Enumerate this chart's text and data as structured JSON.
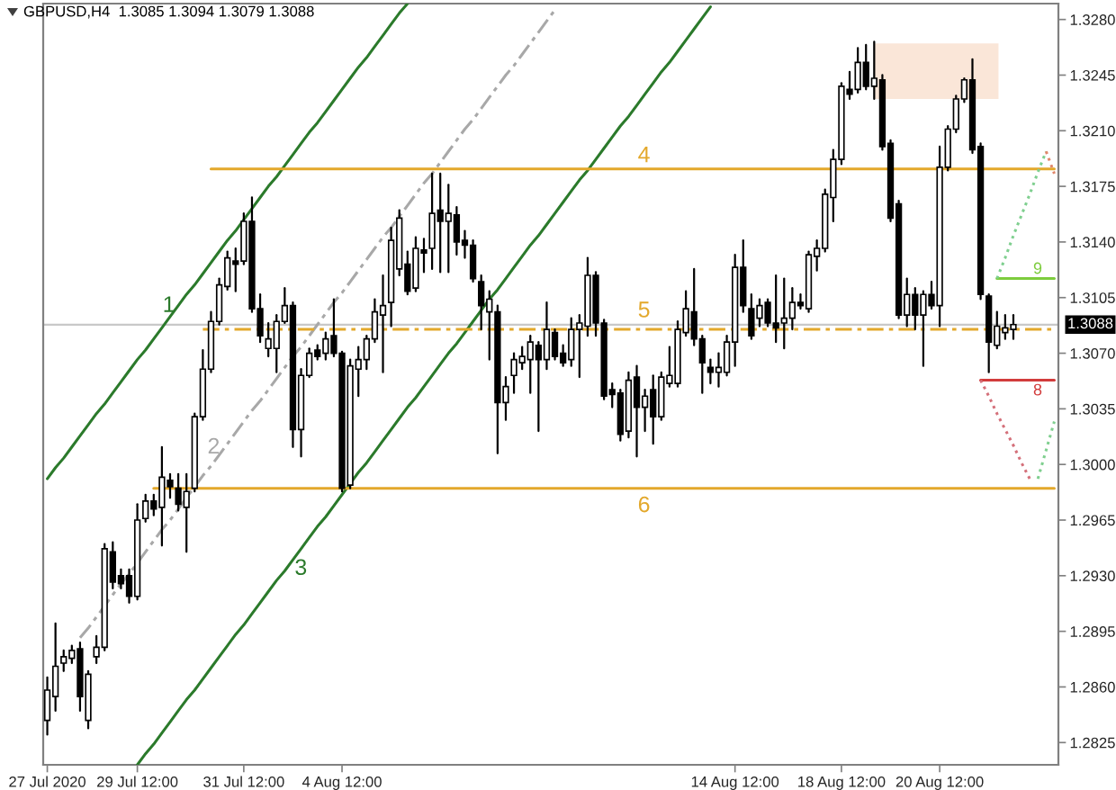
{
  "chart_data": {
    "type": "candlestick",
    "title": "GBPUSD,H4  1.3085 1.3094 1.3079 1.3088",
    "color": "#000000",
    "categories": [
      "27 Jul 2020",
      null,
      null,
      null,
      null,
      null,
      null,
      null,
      null,
      null,
      null,
      "29 Jul 12:00",
      null,
      null,
      null,
      null,
      null,
      null,
      null,
      null,
      null,
      null,
      null,
      null,
      "31 Jul 12:00",
      null,
      null,
      null,
      null,
      null,
      null,
      null,
      null,
      null,
      null,
      null,
      "4 Aug 12:00",
      null,
      null,
      null,
      null,
      null,
      null,
      null,
      null,
      null,
      null,
      null,
      null,
      null,
      null,
      null,
      null,
      null,
      null,
      null,
      null,
      null,
      null,
      null,
      null,
      null,
      null,
      null,
      null,
      null,
      null,
      null,
      null,
      null,
      null,
      null,
      null,
      null,
      null,
      null,
      null,
      null,
      null,
      null,
      null,
      null,
      null,
      null,
      "14 Aug 12:00",
      null,
      null,
      null,
      null,
      null,
      null,
      null,
      null,
      null,
      null,
      null,
      null,
      "18 Aug 12:00",
      null,
      null,
      null,
      null,
      null,
      null,
      null,
      null,
      null,
      null,
      null,
      "20 Aug 12:00",
      null,
      null,
      null,
      null,
      null,
      null,
      null,
      null,
      null,
      null,
      null,
      null,
      null,
      null
    ],
    "ohlc": [
      [
        1.2839,
        1.2866,
        1.283,
        1.2858
      ],
      [
        1.2854,
        1.29,
        1.2845,
        1.2873
      ],
      [
        1.2875,
        1.2883,
        1.287,
        1.2879
      ],
      [
        1.2878,
        1.2886,
        1.2875,
        1.2883
      ],
      [
        1.2884,
        1.2888,
        1.2845,
        1.2854
      ],
      [
        1.2839,
        1.287,
        1.2834,
        1.2868
      ],
      [
        1.2879,
        1.2892,
        1.2875,
        1.2885
      ],
      [
        1.2885,
        1.295,
        1.2883,
        1.2947
      ],
      [
        1.2945,
        1.2951,
        1.2922,
        1.2926
      ],
      [
        1.293,
        1.2934,
        1.2922,
        1.2925
      ],
      [
        1.293,
        1.2934,
        1.2913,
        1.2917
      ],
      [
        1.2917,
        1.2975,
        1.2915,
        1.2965
      ],
      [
        1.2966,
        1.2981,
        1.2964,
        1.2977
      ],
      [
        1.2977,
        1.2981,
        1.2968,
        1.2972
      ],
      [
        1.2973,
        1.3011,
        1.2949,
        1.2992
      ],
      [
        1.299,
        1.2994,
        1.2979,
        1.2986
      ],
      [
        1.2985,
        1.2994,
        1.2971,
        1.2975
      ],
      [
        1.2973,
        1.2994,
        1.2945,
        1.2983
      ],
      [
        1.2985,
        1.3032,
        1.2983,
        1.303
      ],
      [
        1.303,
        1.3072,
        1.3028,
        1.306
      ],
      [
        1.306,
        1.3096,
        1.3058,
        1.309
      ],
      [
        1.309,
        1.3117,
        1.3088,
        1.3113
      ],
      [
        1.3112,
        1.3134,
        1.311,
        1.313
      ],
      [
        1.3128,
        1.3136,
        1.3109,
        1.3126
      ],
      [
        1.3128,
        1.3158,
        1.3126,
        1.3153
      ],
      [
        1.3153,
        1.3168,
        1.3096,
        1.3098
      ],
      [
        1.3098,
        1.3107,
        1.3077,
        1.3081
      ],
      [
        1.3073,
        1.3089,
        1.3068,
        1.3079
      ],
      [
        1.3073,
        1.3094,
        1.3058,
        1.309
      ],
      [
        1.309,
        1.3111,
        1.3089,
        1.31
      ],
      [
        1.31,
        1.3102,
        1.3011,
        1.3022
      ],
      [
        1.3022,
        1.306,
        1.3005,
        1.3056
      ],
      [
        1.3056,
        1.3073,
        1.3055,
        1.307
      ],
      [
        1.3072,
        1.3075,
        1.3066,
        1.3068
      ],
      [
        1.307,
        1.3083,
        1.3066,
        1.3079
      ],
      [
        1.3081,
        1.3104,
        1.3068,
        1.307
      ],
      [
        1.307,
        1.3071,
        1.2983,
        1.2985
      ],
      [
        1.2987,
        1.3066,
        1.2985,
        1.3062
      ],
      [
        1.306,
        1.3074,
        1.3043,
        1.3066
      ],
      [
        1.3066,
        1.3081,
        1.306,
        1.3079
      ],
      [
        1.3079,
        1.3104,
        1.3077,
        1.3096
      ],
      [
        1.3094,
        1.3119,
        1.3058,
        1.31
      ],
      [
        1.3102,
        1.3149,
        1.3087,
        1.3141
      ],
      [
        1.3123,
        1.316,
        1.3119,
        1.3155
      ],
      [
        1.3126,
        1.3134,
        1.3107,
        1.3109
      ],
      [
        1.3111,
        1.3143,
        1.3109,
        1.3136
      ],
      [
        1.3135,
        1.3142,
        1.3121,
        1.3133
      ],
      [
        1.3136,
        1.3183,
        1.3123,
        1.3158
      ],
      [
        1.316,
        1.3183,
        1.3121,
        1.3153
      ],
      [
        1.3153,
        1.3176,
        1.3121,
        1.3158
      ],
      [
        1.3157,
        1.3162,
        1.3132,
        1.314
      ],
      [
        1.3141,
        1.3147,
        1.313,
        1.3138
      ],
      [
        1.3138,
        1.3141,
        1.3115,
        1.3117
      ],
      [
        1.3115,
        1.3119,
        1.3085,
        1.31
      ],
      [
        1.3096,
        1.3109,
        1.3066,
        1.3104
      ],
      [
        1.3096,
        1.31,
        1.3007,
        1.3039
      ],
      [
        1.3039,
        1.3055,
        1.3028,
        1.3049
      ],
      [
        1.3056,
        1.307,
        1.3045,
        1.3066
      ],
      [
        1.3064,
        1.3074,
        1.306,
        1.3068
      ],
      [
        1.3066,
        1.3081,
        1.3045,
        1.3077
      ],
      [
        1.3075,
        1.3077,
        1.3021,
        1.3066
      ],
      [
        1.3066,
        1.3102,
        1.306,
        1.3085
      ],
      [
        1.3083,
        1.3085,
        1.3066,
        1.3068
      ],
      [
        1.307,
        1.3075,
        1.3062,
        1.3064
      ],
      [
        1.3066,
        1.3092,
        1.3062,
        1.3085
      ],
      [
        1.3085,
        1.3094,
        1.3055,
        1.3089
      ],
      [
        1.3087,
        1.313,
        1.3081,
        1.3119
      ],
      [
        1.3119,
        1.3121,
        1.3081,
        1.3089
      ],
      [
        1.3089,
        1.3091,
        1.3041,
        1.3043
      ],
      [
        1.3047,
        1.3051,
        1.3036,
        1.3044
      ],
      [
        1.3045,
        1.3047,
        1.3015,
        1.3019
      ],
      [
        1.3021,
        1.3058,
        1.3017,
        1.3053
      ],
      [
        1.3055,
        1.3062,
        1.3005,
        1.3036
      ],
      [
        1.3036,
        1.3047,
        1.3021,
        1.3043
      ],
      [
        1.3047,
        1.3056,
        1.3013,
        1.303
      ],
      [
        1.303,
        1.3058,
        1.3028,
        1.3055
      ],
      [
        1.3051,
        1.3074,
        1.3049,
        1.3056
      ],
      [
        1.3051,
        1.309,
        1.3049,
        1.3085
      ],
      [
        1.3083,
        1.3109,
        1.3081,
        1.3098
      ],
      [
        1.3096,
        1.3123,
        1.3075,
        1.3079
      ],
      [
        1.3079,
        1.3081,
        1.3045,
        1.3064
      ],
      [
        1.3061,
        1.3066,
        1.3051,
        1.3058
      ],
      [
        1.3058,
        1.307,
        1.3049,
        1.3061
      ],
      [
        1.3058,
        1.3081,
        1.3056,
        1.3077
      ],
      [
        1.3077,
        1.3132,
        1.3062,
        1.3124
      ],
      [
        1.3124,
        1.3141,
        1.3096,
        1.31
      ],
      [
        1.3098,
        1.3107,
        1.3079,
        1.3081
      ],
      [
        1.3092,
        1.3104,
        1.3087,
        1.31
      ],
      [
        1.3102,
        1.3104,
        1.3087,
        1.3089
      ],
      [
        1.3089,
        1.3119,
        1.3077,
        1.3086
      ],
      [
        1.3089,
        1.3117,
        1.3073,
        1.3092
      ],
      [
        1.3092,
        1.3111,
        1.3085,
        1.3102
      ],
      [
        1.3102,
        1.3107,
        1.3098,
        1.31
      ],
      [
        1.3098,
        1.3134,
        1.3096,
        1.3132
      ],
      [
        1.3131,
        1.3141,
        1.3122,
        1.3136
      ],
      [
        1.3136,
        1.3173,
        1.3134,
        1.317
      ],
      [
        1.3168,
        1.3198,
        1.3153,
        1.3192
      ],
      [
        1.3192,
        1.324,
        1.3189,
        1.3238
      ],
      [
        1.3236,
        1.3247,
        1.323,
        1.3233
      ],
      [
        1.3236,
        1.3262,
        1.3234,
        1.3253
      ],
      [
        1.3253,
        1.3264,
        1.3236,
        1.3238
      ],
      [
        1.3238,
        1.3266,
        1.323,
        1.3243
      ],
      [
        1.3242,
        1.3245,
        1.3198,
        1.32
      ],
      [
        1.3202,
        1.3204,
        1.3153,
        1.3155
      ],
      [
        1.3164,
        1.3166,
        1.3092,
        1.3094
      ],
      [
        1.3094,
        1.3117,
        1.3087,
        1.3107
      ],
      [
        1.3107,
        1.3111,
        1.3085,
        1.3094
      ],
      [
        1.3094,
        1.3109,
        1.3062,
        1.3107
      ],
      [
        1.3107,
        1.3115,
        1.3098,
        1.31
      ],
      [
        1.31,
        1.32,
        1.3087,
        1.3187
      ],
      [
        1.3187,
        1.3213,
        1.3185,
        1.3211
      ],
      [
        1.3211,
        1.3232,
        1.3209,
        1.323
      ],
      [
        1.323,
        1.3243,
        1.3228,
        1.3242
      ],
      [
        1.3242,
        1.3255,
        1.3196,
        1.3198
      ],
      [
        1.32,
        1.3202,
        1.3104,
        1.3107
      ],
      [
        1.3106,
        1.3107,
        1.3058,
        1.3077
      ],
      [
        1.3075,
        1.3096,
        1.3073,
        1.3087
      ],
      [
        1.3083,
        1.3094,
        1.3079,
        1.3086
      ],
      [
        1.3085,
        1.3094,
        1.3079,
        1.3088
      ],
      null,
      null,
      null,
      null,
      null
    ],
    "ylim": [
      1.2811,
      1.329
    ],
    "yticks": [
      1.2825,
      {
        "value": 1.286,
        "label": "1.2860"
      },
      1.2895,
      {
        "value": 1.293,
        "label": "1.2930"
      },
      1.2965,
      {
        "value": 1.3,
        "label": "1.3000"
      },
      1.3035,
      {
        "value": 1.307,
        "label": "1.3070"
      },
      1.3105,
      {
        "value": 1.314,
        "label": "1.3140"
      },
      1.3175,
      {
        "value": 1.321,
        "label": "1.3210"
      },
      1.3245,
      {
        "value": 1.328,
        "label": "1.3280"
      }
    ],
    "ref_lines": [
      {
        "axis": "y",
        "value": 1.3088,
        "label": "1.3088",
        "color": "#c8c8c8"
      }
    ],
    "bands": [
      {
        "axis": "y",
        "from": 1.323,
        "to": 1.3265,
        "color": "#fae6d8"
      }
    ],
    "series": [
      {
        "type": "line",
        "name": "1",
        "color": "#2b7a2b",
        "values": [
          1.2991,
          1.2998,
          1.3004,
          1.3011,
          1.3018,
          1.3025,
          1.3032,
          1.3038,
          1.3045,
          1.3052,
          1.3059,
          1.3066,
          1.3072,
          1.3079,
          1.3086,
          1.3093,
          1.31,
          1.3107,
          1.3113,
          1.312,
          1.3127,
          1.3134,
          1.3141,
          1.3147,
          1.3154,
          1.3161,
          1.3168,
          1.3175,
          1.3181,
          1.3188,
          1.3195,
          1.3202,
          1.3209,
          1.3215,
          1.3222,
          1.3229,
          1.3236,
          1.3243,
          1.325,
          1.3256,
          1.3263,
          1.327,
          1.3277,
          1.3284,
          1.329,
          null,
          null,
          null,
          null,
          null,
          null,
          null,
          null,
          null,
          null,
          null,
          null,
          null,
          null,
          null,
          null,
          null,
          null,
          null,
          null,
          null,
          null,
          null,
          null,
          null,
          null,
          null,
          null,
          null,
          null,
          null,
          null,
          null,
          null,
          null,
          null,
          null,
          null,
          null,
          null,
          null,
          null,
          null,
          null,
          null,
          null,
          null,
          null,
          null,
          null,
          null,
          null,
          null,
          null,
          null,
          null,
          null,
          null,
          null,
          null,
          null,
          null,
          null,
          null,
          null,
          null,
          null,
          null,
          null,
          null,
          null,
          null,
          null,
          null,
          null,
          null,
          null,
          null,
          null
        ]
      },
      {
        "type": "line",
        "name": "2",
        "color": "#a8a8a8",
        "line_style": "dashed",
        "values": [
          null,
          null,
          null,
          null,
          1.2891,
          1.2897,
          1.2904,
          1.2911,
          1.2918,
          1.2925,
          1.2931,
          1.2938,
          1.2945,
          1.2952,
          1.2959,
          1.2965,
          1.2972,
          1.2979,
          1.2986,
          1.2993,
          1.2999,
          1.3006,
          1.3013,
          1.302,
          1.3027,
          1.3034,
          1.304,
          1.3047,
          1.3054,
          1.3061,
          1.3068,
          1.3074,
          1.3081,
          1.3088,
          1.3095,
          1.3102,
          1.3108,
          1.3115,
          1.3122,
          1.3129,
          1.3136,
          1.3143,
          1.3149,
          1.3156,
          1.3163,
          1.317,
          1.3177,
          1.3183,
          1.319,
          1.3197,
          1.3204,
          1.3211,
          1.3217,
          1.3224,
          1.3231,
          1.3238,
          1.3245,
          1.3251,
          1.3258,
          1.3265,
          1.3272,
          1.3279,
          1.3286,
          null,
          null,
          null,
          null,
          null,
          null,
          null,
          null,
          null,
          null,
          null,
          null,
          null,
          null,
          null,
          null,
          null,
          null,
          null,
          null,
          null,
          null,
          null,
          null,
          null,
          null,
          null,
          null,
          null,
          null,
          null,
          null,
          null,
          null,
          null,
          null,
          null,
          null,
          null,
          null,
          null,
          null,
          null,
          null,
          null,
          null,
          null,
          null,
          null,
          null,
          null,
          null,
          null,
          null,
          null,
          null,
          null,
          null,
          null,
          null,
          null
        ]
      },
      {
        "type": "line",
        "name": "3",
        "color": "#2b7a2b",
        "values": [
          null,
          null,
          null,
          null,
          null,
          null,
          null,
          null,
          null,
          null,
          null,
          1.2811,
          1.2818,
          1.2824,
          1.2831,
          1.2838,
          1.2845,
          1.2852,
          1.2858,
          1.2865,
          1.2872,
          1.2879,
          1.2886,
          1.2893,
          1.2899,
          1.2906,
          1.2913,
          1.292,
          1.2927,
          1.2933,
          1.294,
          1.2947,
          1.2954,
          1.2961,
          1.2967,
          1.2974,
          1.2981,
          1.2988,
          1.2995,
          1.3001,
          1.3008,
          1.3015,
          1.3022,
          1.3029,
          1.3036,
          1.3042,
          1.3049,
          1.3056,
          1.3063,
          1.307,
          1.3076,
          1.3083,
          1.309,
          1.3097,
          1.3104,
          1.311,
          1.3117,
          1.3124,
          1.3131,
          1.3138,
          1.3144,
          1.3151,
          1.3158,
          1.3165,
          1.3172,
          1.3179,
          1.3185,
          1.3192,
          1.3199,
          1.3206,
          1.3213,
          1.3219,
          1.3226,
          1.3233,
          1.324,
          1.3247,
          1.3253,
          1.326,
          1.3267,
          1.3274,
          1.3281,
          1.3288,
          null,
          null,
          null,
          null,
          null,
          null,
          null,
          null,
          null,
          null,
          null,
          null,
          null,
          null,
          null,
          null,
          null,
          null,
          null,
          null,
          null,
          null,
          null,
          null,
          null,
          null,
          null,
          null,
          null,
          null,
          null,
          null,
          null,
          null,
          null,
          null,
          null,
          null,
          null,
          null,
          null,
          null
        ]
      },
      {
        "type": "line",
        "name": "4",
        "color": "#e3a82b",
        "values": [
          null,
          null,
          null,
          null,
          null,
          null,
          null,
          null,
          null,
          null,
          null,
          null,
          null,
          null,
          null,
          null,
          null,
          null,
          null,
          null,
          1.3186,
          1.3186,
          1.3186,
          1.3186,
          1.3186,
          1.3186,
          1.3186,
          1.3186,
          1.3186,
          1.3186,
          1.3186,
          1.3186,
          1.3186,
          1.3186,
          1.3186,
          1.3186,
          1.3186,
          1.3186,
          1.3186,
          1.3186,
          1.3186,
          1.3186,
          1.3186,
          1.3186,
          1.3186,
          1.3186,
          1.3186,
          1.3186,
          1.3186,
          1.3186,
          1.3186,
          1.3186,
          1.3186,
          1.3186,
          1.3186,
          1.3186,
          1.3186,
          1.3186,
          1.3186,
          1.3186,
          1.3186,
          1.3186,
          1.3186,
          1.3186,
          1.3186,
          1.3186,
          1.3186,
          1.3186,
          1.3186,
          1.3186,
          1.3186,
          1.3186,
          1.3186,
          1.3186,
          1.3186,
          1.3186,
          1.3186,
          1.3186,
          1.3186,
          1.3186,
          1.3186,
          1.3186,
          1.3186,
          1.3186,
          1.3186,
          1.3186,
          1.3186,
          1.3186,
          1.3186,
          1.3186,
          1.3186,
          1.3186,
          1.3186,
          1.3186,
          1.3186,
          1.3186,
          1.3186,
          1.3186,
          1.3186,
          1.3186,
          1.3186,
          1.3186,
          1.3186,
          1.3186,
          1.3186,
          1.3186,
          1.3186,
          1.3186,
          1.3186,
          1.3186,
          1.3186,
          1.3186,
          1.3186,
          1.3186,
          1.3186,
          1.3186,
          1.3186,
          1.3186,
          1.3186,
          1.3186,
          1.3186,
          1.3186,
          1.3186,
          1.3186
        ]
      },
      {
        "type": "line",
        "name": "5",
        "color": "#e3a82b",
        "line_style": "dashed",
        "values": [
          null,
          null,
          null,
          null,
          null,
          null,
          null,
          null,
          null,
          null,
          null,
          null,
          null,
          null,
          null,
          null,
          null,
          null,
          null,
          1.3085,
          1.3085,
          1.3085,
          1.3085,
          1.3085,
          1.3085,
          1.3085,
          1.3085,
          1.3085,
          1.3085,
          1.3085,
          1.3085,
          1.3085,
          1.3085,
          1.3085,
          1.3085,
          1.3085,
          1.3085,
          1.3085,
          1.3085,
          1.3085,
          1.3085,
          1.3085,
          1.3085,
          1.3085,
          1.3085,
          1.3085,
          1.3085,
          1.3085,
          1.3085,
          1.3085,
          1.3085,
          1.3085,
          1.3085,
          1.3085,
          1.3085,
          1.3085,
          1.3085,
          1.3085,
          1.3085,
          1.3085,
          1.3085,
          1.3085,
          1.3085,
          1.3085,
          1.3085,
          1.3085,
          1.3085,
          1.3085,
          1.3085,
          1.3085,
          1.3085,
          1.3085,
          1.3085,
          1.3085,
          1.3085,
          1.3085,
          1.3085,
          1.3085,
          1.3085,
          1.3085,
          1.3085,
          1.3085,
          1.3085,
          1.3085,
          1.3085,
          1.3085,
          1.3085,
          1.3085,
          1.3085,
          1.3085,
          1.3085,
          1.3085,
          1.3085,
          1.3085,
          1.3085,
          1.3085,
          1.3085,
          1.3085,
          1.3085,
          1.3085,
          1.3085,
          1.3085,
          1.3085,
          1.3085,
          1.3085,
          1.3085,
          1.3085,
          1.3085,
          1.3085,
          1.3085,
          1.3085,
          1.3085,
          1.3085,
          1.3085,
          1.3085,
          1.3085,
          1.3085,
          1.3085,
          1.3085,
          1.3085,
          1.3085,
          1.3085,
          1.3085,
          1.3085
        ]
      },
      {
        "type": "line",
        "name": "6",
        "color": "#e3a82b",
        "values": [
          null,
          null,
          null,
          null,
          null,
          null,
          null,
          null,
          null,
          null,
          null,
          null,
          null,
          1.2985,
          1.2985,
          1.2985,
          1.2985,
          1.2985,
          1.2985,
          1.2985,
          1.2985,
          1.2985,
          1.2985,
          1.2985,
          1.2985,
          1.2985,
          1.2985,
          1.2985,
          1.2985,
          1.2985,
          1.2985,
          1.2985,
          1.2985,
          1.2985,
          1.2985,
          1.2985,
          1.2985,
          1.2985,
          1.2985,
          1.2985,
          1.2985,
          1.2985,
          1.2985,
          1.2985,
          1.2985,
          1.2985,
          1.2985,
          1.2985,
          1.2985,
          1.2985,
          1.2985,
          1.2985,
          1.2985,
          1.2985,
          1.2985,
          1.2985,
          1.2985,
          1.2985,
          1.2985,
          1.2985,
          1.2985,
          1.2985,
          1.2985,
          1.2985,
          1.2985,
          1.2985,
          1.2985,
          1.2985,
          1.2985,
          1.2985,
          1.2985,
          1.2985,
          1.2985,
          1.2985,
          1.2985,
          1.2985,
          1.2985,
          1.2985,
          1.2985,
          1.2985,
          1.2985,
          1.2985,
          1.2985,
          1.2985,
          1.2985,
          1.2985,
          1.2985,
          1.2985,
          1.2985,
          1.2985,
          1.2985,
          1.2985,
          1.2985,
          1.2985,
          1.2985,
          1.2985,
          1.2985,
          1.2985,
          1.2985,
          1.2985,
          1.2985,
          1.2985,
          1.2985,
          1.2985,
          1.2985,
          1.2985,
          1.2985,
          1.2985,
          1.2985,
          1.2985,
          1.2985,
          1.2985,
          1.2985,
          1.2985,
          1.2985,
          1.2985,
          1.2985,
          1.2985,
          1.2985,
          1.2985,
          1.2985,
          1.2985,
          1.2985,
          1.2985
        ]
      },
      {
        "type": "line",
        "name": "9",
        "color": "#7dcc3d",
        "values": [
          null,
          null,
          null,
          null,
          null,
          null,
          null,
          null,
          null,
          null,
          null,
          null,
          null,
          null,
          null,
          null,
          null,
          null,
          null,
          null,
          null,
          null,
          null,
          null,
          null,
          null,
          null,
          null,
          null,
          null,
          null,
          null,
          null,
          null,
          null,
          null,
          null,
          null,
          null,
          null,
          null,
          null,
          null,
          null,
          null,
          null,
          null,
          null,
          null,
          null,
          null,
          null,
          null,
          null,
          null,
          null,
          null,
          null,
          null,
          null,
          null,
          null,
          null,
          null,
          null,
          null,
          null,
          null,
          null,
          null,
          null,
          null,
          null,
          null,
          null,
          null,
          null,
          null,
          null,
          null,
          null,
          null,
          null,
          null,
          null,
          null,
          null,
          null,
          null,
          null,
          null,
          null,
          null,
          null,
          null,
          null,
          null,
          null,
          null,
          null,
          null,
          null,
          null,
          null,
          null,
          null,
          null,
          null,
          null,
          null,
          null,
          null,
          null,
          null,
          null,
          null,
          1.3117,
          1.3117,
          1.3117,
          1.3117,
          1.3117,
          1.3117,
          1.3117,
          1.3117
        ]
      },
      {
        "type": "line",
        "name": "8",
        "color": "#d23c3c",
        "values": [
          null,
          null,
          null,
          null,
          null,
          null,
          null,
          null,
          null,
          null,
          null,
          null,
          null,
          null,
          null,
          null,
          null,
          null,
          null,
          null,
          null,
          null,
          null,
          null,
          null,
          null,
          null,
          null,
          null,
          null,
          null,
          null,
          null,
          null,
          null,
          null,
          null,
          null,
          null,
          null,
          null,
          null,
          null,
          null,
          null,
          null,
          null,
          null,
          null,
          null,
          null,
          null,
          null,
          null,
          null,
          null,
          null,
          null,
          null,
          null,
          null,
          null,
          null,
          null,
          null,
          null,
          null,
          null,
          null,
          null,
          null,
          null,
          null,
          null,
          null,
          null,
          null,
          null,
          null,
          null,
          null,
          null,
          null,
          null,
          null,
          null,
          null,
          null,
          null,
          null,
          null,
          null,
          null,
          null,
          null,
          null,
          null,
          null,
          null,
          null,
          null,
          null,
          null,
          null,
          null,
          null,
          null,
          null,
          null,
          null,
          null,
          null,
          null,
          null,
          1.3053,
          1.3053,
          1.3053,
          1.3053,
          1.3053,
          1.3053,
          1.3053,
          1.3053,
          1.3053,
          1.3053
        ]
      },
      {
        "type": "line",
        "color": "#7fcf8f",
        "line_style": "dotted",
        "values": [
          null,
          null,
          null,
          null,
          null,
          null,
          null,
          null,
          null,
          null,
          null,
          null,
          null,
          null,
          null,
          null,
          null,
          null,
          null,
          null,
          null,
          null,
          null,
          null,
          null,
          null,
          null,
          null,
          null,
          null,
          null,
          null,
          null,
          null,
          null,
          null,
          null,
          null,
          null,
          null,
          null,
          null,
          null,
          null,
          null,
          null,
          null,
          null,
          null,
          null,
          null,
          null,
          null,
          null,
          null,
          null,
          null,
          null,
          null,
          null,
          null,
          null,
          null,
          null,
          null,
          null,
          null,
          null,
          null,
          null,
          null,
          null,
          null,
          null,
          null,
          null,
          null,
          null,
          null,
          null,
          null,
          null,
          null,
          null,
          null,
          null,
          null,
          null,
          null,
          null,
          null,
          null,
          null,
          null,
          null,
          null,
          null,
          null,
          null,
          null,
          null,
          null,
          null,
          null,
          null,
          null,
          null,
          null,
          null,
          null,
          null,
          null,
          null,
          null,
          null,
          null,
          1.3117,
          1.313,
          1.3144,
          1.3157,
          1.317,
          1.3184,
          1.3197,
          null
        ]
      },
      {
        "type": "line",
        "color": "#e0866a",
        "line_style": "dotted",
        "values": [
          null,
          null,
          null,
          null,
          null,
          null,
          null,
          null,
          null,
          null,
          null,
          null,
          null,
          null,
          null,
          null,
          null,
          null,
          null,
          null,
          null,
          null,
          null,
          null,
          null,
          null,
          null,
          null,
          null,
          null,
          null,
          null,
          null,
          null,
          null,
          null,
          null,
          null,
          null,
          null,
          null,
          null,
          null,
          null,
          null,
          null,
          null,
          null,
          null,
          null,
          null,
          null,
          null,
          null,
          null,
          null,
          null,
          null,
          null,
          null,
          null,
          null,
          null,
          null,
          null,
          null,
          null,
          null,
          null,
          null,
          null,
          null,
          null,
          null,
          null,
          null,
          null,
          null,
          null,
          null,
          null,
          null,
          null,
          null,
          null,
          null,
          null,
          null,
          null,
          null,
          null,
          null,
          null,
          null,
          null,
          null,
          null,
          null,
          null,
          null,
          null,
          null,
          null,
          null,
          null,
          null,
          null,
          null,
          null,
          null,
          null,
          null,
          null,
          null,
          null,
          null,
          null,
          null,
          null,
          null,
          null,
          null,
          1.3197,
          1.3183
        ]
      },
      {
        "type": "line",
        "color": "#d4707a",
        "line_style": "dotted",
        "values": [
          null,
          null,
          null,
          null,
          null,
          null,
          null,
          null,
          null,
          null,
          null,
          null,
          null,
          null,
          null,
          null,
          null,
          null,
          null,
          null,
          null,
          null,
          null,
          null,
          null,
          null,
          null,
          null,
          null,
          null,
          null,
          null,
          null,
          null,
          null,
          null,
          null,
          null,
          null,
          null,
          null,
          null,
          null,
          null,
          null,
          null,
          null,
          null,
          null,
          null,
          null,
          null,
          null,
          null,
          null,
          null,
          null,
          null,
          null,
          null,
          null,
          null,
          null,
          null,
          null,
          null,
          null,
          null,
          null,
          null,
          null,
          null,
          null,
          null,
          null,
          null,
          null,
          null,
          null,
          null,
          null,
          null,
          null,
          null,
          null,
          null,
          null,
          null,
          null,
          null,
          null,
          null,
          null,
          null,
          null,
          null,
          null,
          null,
          null,
          null,
          null,
          null,
          null,
          null,
          null,
          null,
          null,
          null,
          null,
          null,
          null,
          null,
          null,
          null,
          1.3053,
          1.3043,
          1.3032,
          1.3022,
          1.3012,
          1.3001,
          1.2991,
          null,
          null,
          null
        ]
      },
      {
        "type": "line",
        "color": "#7fcf8f",
        "line_style": "dotted",
        "values": [
          null,
          null,
          null,
          null,
          null,
          null,
          null,
          null,
          null,
          null,
          null,
          null,
          null,
          null,
          null,
          null,
          null,
          null,
          null,
          null,
          null,
          null,
          null,
          null,
          null,
          null,
          null,
          null,
          null,
          null,
          null,
          null,
          null,
          null,
          null,
          null,
          null,
          null,
          null,
          null,
          null,
          null,
          null,
          null,
          null,
          null,
          null,
          null,
          null,
          null,
          null,
          null,
          null,
          null,
          null,
          null,
          null,
          null,
          null,
          null,
          null,
          null,
          null,
          null,
          null,
          null,
          null,
          null,
          null,
          null,
          null,
          null,
          null,
          null,
          null,
          null,
          null,
          null,
          null,
          null,
          null,
          null,
          null,
          null,
          null,
          null,
          null,
          null,
          null,
          null,
          null,
          null,
          null,
          null,
          null,
          null,
          null,
          null,
          null,
          null,
          null,
          null,
          null,
          null,
          null,
          null,
          null,
          null,
          null,
          null,
          null,
          null,
          null,
          null,
          null,
          null,
          null,
          null,
          null,
          null,
          null,
          1.2991,
          1.3009,
          1.3027
        ]
      }
    ]
  }
}
